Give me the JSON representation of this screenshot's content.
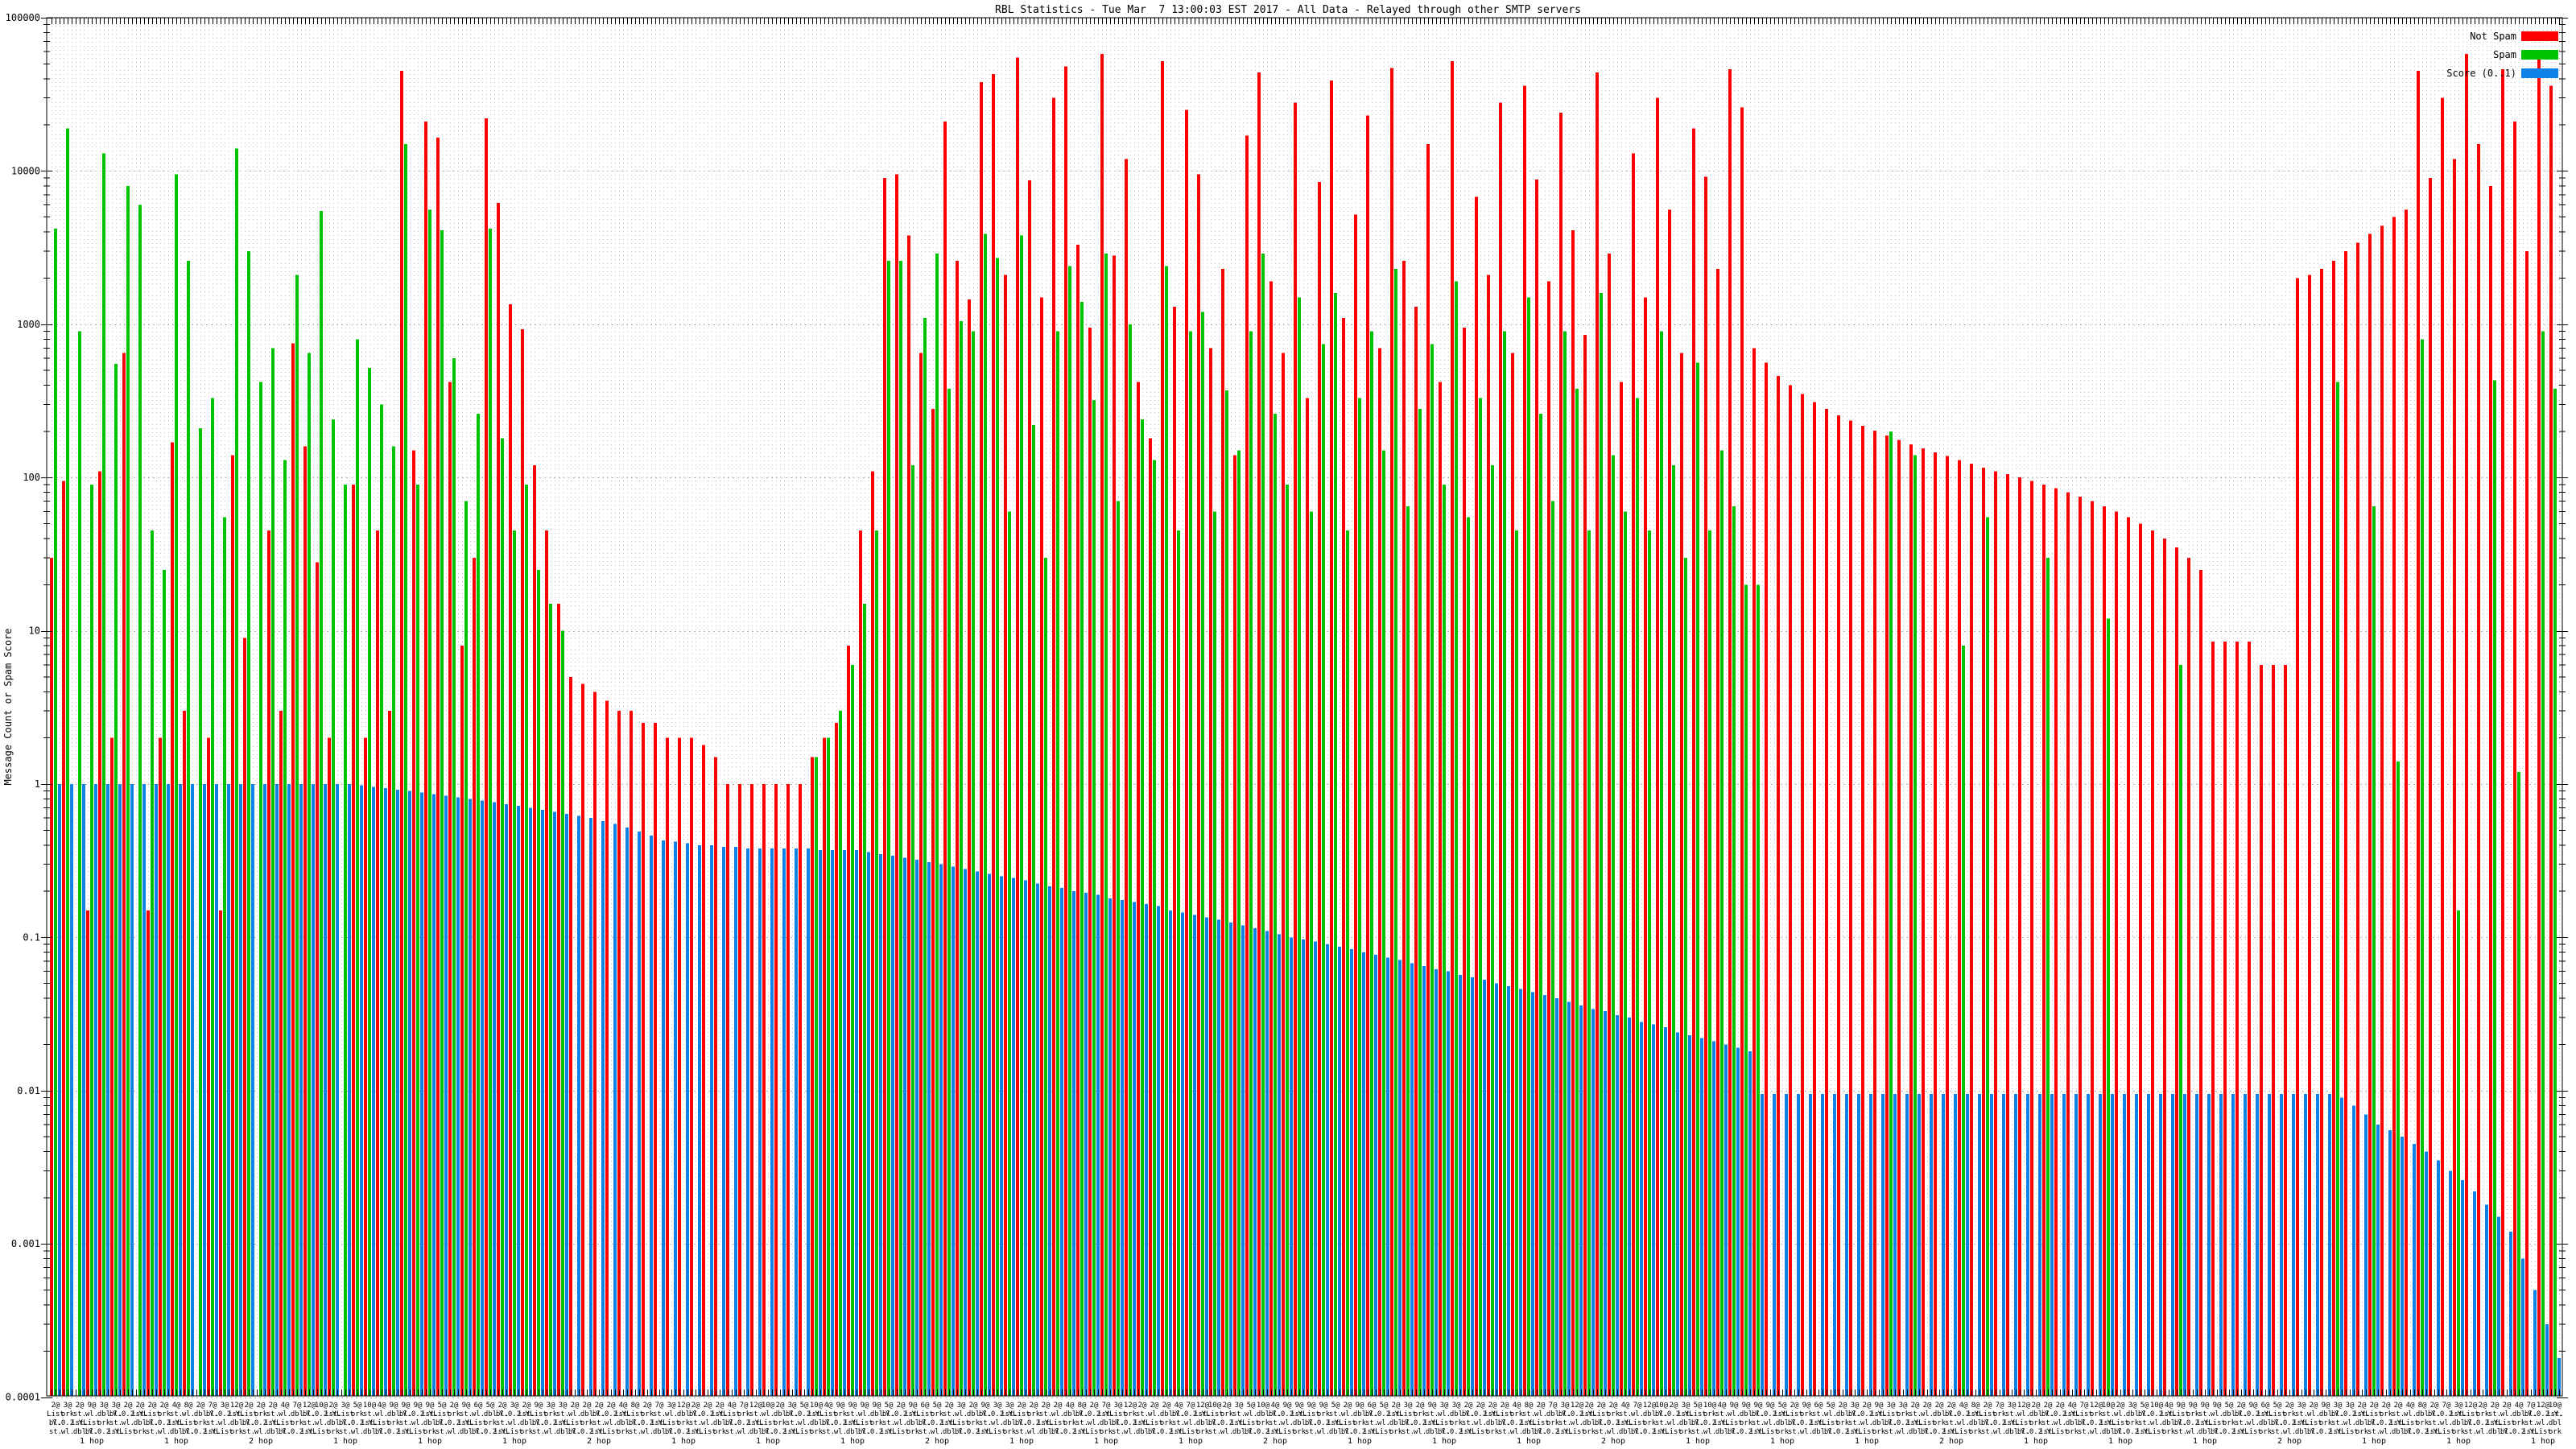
{
  "page": {
    "title": "RBL Statistics - Tue Mar  7 13:00:03 EST 2017 - All Data - Relayed through other SMTP servers"
  },
  "chart_data": {
    "type": "bar",
    "title": "RBL Statistics - Tue Mar  7 13:00:03 EST 2017 - All Data - Relayed through other SMTP servers",
    "xlabel": "",
    "ylabel": "Message Count or Spam Score",
    "yscale": "log",
    "ylim": [
      0.0001,
      100000
    ],
    "yticks": [
      100000,
      10000,
      1000,
      100,
      10,
      1,
      0.1,
      0.01,
      0.001,
      0.0001
    ],
    "grid": {
      "vertical_dotted_per_slot": true,
      "horizontal_dotted_per_decade": true
    },
    "legend": {
      "position": "top-right",
      "entries": [
        {
          "label": "Not Spam",
          "color": "#ff0000"
        },
        {
          "label": "Spam",
          "color": "#00c300"
        },
        {
          "label": "Score (0..1)",
          "color": "#0e82e6"
        }
      ]
    },
    "x_axis": {
      "categories_count": 208,
      "labels_illegible_overlap": true,
      "count_prefix_cycle": [
        2,
        3,
        2,
        9,
        3,
        3,
        2,
        2,
        2,
        2,
        4,
        8,
        2,
        7,
        3,
        12,
        2,
        2,
        2,
        4,
        7,
        12,
        10,
        2,
        3,
        5,
        10,
        4,
        9,
        9,
        9,
        9,
        5,
        2,
        9,
        6,
        5
      ],
      "label_fragments": [
        "List",
        "ist.",
        ".Y.0.2.Y.",
        "bl.",
        "dbl",
        "wl.",
        "st.",
        "ork"
      ],
      "hop_label_cycle": [
        "1 hop",
        "1 hop",
        "2 hop",
        "1 hop"
      ],
      "hop_label_every": 7
    },
    "series": [
      {
        "name": "Not Spam",
        "color": "#ff0000",
        "values": [
          30,
          95,
          0,
          0.15,
          110,
          2,
          650,
          0,
          0.15,
          2,
          170,
          3,
          0,
          2,
          0.15,
          140,
          9,
          0,
          45,
          3,
          750,
          160,
          28,
          2,
          0,
          90,
          2,
          45,
          3,
          45000,
          150,
          21000,
          16500,
          420,
          8,
          30,
          22000,
          6200,
          1350,
          930,
          120,
          45,
          15,
          5,
          4.5,
          4,
          3.5,
          3,
          3,
          2.5,
          2.5,
          2,
          2,
          2,
          1.8,
          1.5,
          1,
          1,
          1,
          1,
          1,
          1,
          1,
          1.5,
          2,
          2.5,
          8,
          45,
          110,
          9000,
          9500,
          3800,
          650,
          280,
          21000,
          2600,
          1450,
          38000,
          43000,
          2100,
          55000,
          8700,
          1500,
          30000,
          48000,
          3300,
          950,
          58000,
          2800,
          12000,
          420,
          180,
          52000,
          1300,
          25000,
          9500,
          700,
          2300,
          140,
          17000,
          44000,
          1900,
          650,
          28000,
          330,
          8500,
          39000,
          1100,
          5200,
          23000,
          700,
          47000,
          2600,
          1300,
          15000,
          420,
          52000,
          950,
          6800,
          2100,
          28000,
          650,
          36000,
          8800,
          1900,
          24000,
          4100,
          850,
          44000,
          2900,
          420,
          13000,
          1500,
          30000,
          5600,
          650,
          19000,
          9200,
          2300,
          46000,
          26000,
          700,
          560,
          460,
          400,
          350,
          310,
          280,
          255,
          235,
          218,
          202,
          188,
          176,
          165,
          155,
          146,
          138,
          130,
          123,
          116,
          110,
          105,
          100,
          95,
          90,
          85,
          80,
          75,
          70,
          65,
          60,
          55,
          50,
          45,
          40,
          35,
          30,
          25,
          8.5,
          8.5,
          8.5,
          8.5,
          6,
          6,
          6,
          2000,
          2100,
          2300,
          2600,
          3000,
          3400,
          3900,
          4400,
          5000,
          5600,
          45000,
          9000,
          30000,
          12000,
          58000,
          15000,
          8000,
          46000,
          21000,
          3000,
          60000,
          36000
        ]
      },
      {
        "name": "Spam",
        "color": "#00c300",
        "values": [
          4200,
          19000,
          900,
          90,
          13000,
          550,
          8000,
          6000,
          45,
          25,
          9500,
          2600,
          210,
          330,
          55,
          14000,
          3000,
          420,
          700,
          130,
          2100,
          650,
          5500,
          240,
          90,
          800,
          520,
          300,
          160,
          15000,
          90,
          5600,
          4100,
          600,
          70,
          260,
          4200,
          180,
          45,
          90,
          25,
          15,
          10,
          0,
          0,
          0,
          0,
          0,
          0,
          0,
          0,
          0,
          0,
          0,
          0,
          0,
          0,
          0,
          0,
          0,
          0,
          0,
          0,
          1.5,
          2,
          3,
          6,
          15,
          45,
          2600,
          2600,
          120,
          1100,
          2900,
          380,
          1050,
          900,
          3900,
          2700,
          60,
          3800,
          220,
          30,
          900,
          2400,
          1400,
          320,
          2900,
          70,
          1000,
          240,
          130,
          2400,
          45,
          900,
          1200,
          60,
          370,
          150,
          900,
          2900,
          260,
          90,
          1500,
          60,
          740,
          1600,
          45,
          330,
          900,
          150,
          2300,
          65,
          280,
          740,
          90,
          1900,
          55,
          330,
          120,
          900,
          45,
          1500,
          260,
          70,
          900,
          380,
          45,
          1600,
          140,
          60,
          330,
          45,
          900,
          120,
          30,
          560,
          45,
          150,
          65,
          20,
          20,
          0,
          0,
          0,
          0,
          0,
          0,
          0,
          0,
          0,
          0,
          200,
          0,
          140,
          0,
          0,
          0,
          8,
          0,
          55,
          0,
          0,
          0,
          0,
          30,
          0,
          0,
          0,
          0,
          12,
          0,
          0,
          0,
          0,
          0,
          6,
          0,
          0,
          0,
          0,
          0,
          0,
          0,
          0,
          0,
          0,
          0,
          0,
          420,
          0,
          0,
          65,
          0,
          1.4,
          0,
          800,
          0,
          0,
          0.15,
          0,
          0,
          430,
          0,
          1.2,
          0,
          900,
          380
        ]
      },
      {
        "name": "Score (0..1)",
        "color": "#0e82e6",
        "values": [
          0.999,
          0.999,
          0.999,
          0.999,
          0.999,
          0.999,
          0.999,
          0.999,
          0.999,
          0.999,
          0.999,
          0.999,
          0.999,
          0.999,
          0.999,
          0.999,
          0.999,
          0.999,
          0.999,
          0.999,
          0.999,
          0.999,
          0.999,
          0.999,
          0.999,
          0.98,
          0.96,
          0.94,
          0.92,
          0.9,
          0.88,
          0.86,
          0.84,
          0.82,
          0.8,
          0.78,
          0.76,
          0.74,
          0.72,
          0.7,
          0.68,
          0.66,
          0.64,
          0.62,
          0.6,
          0.575,
          0.55,
          0.52,
          0.49,
          0.46,
          0.43,
          0.42,
          0.41,
          0.4,
          0.4,
          0.39,
          0.39,
          0.38,
          0.38,
          0.38,
          0.38,
          0.38,
          0.38,
          0.37,
          0.37,
          0.37,
          0.37,
          0.36,
          0.35,
          0.34,
          0.33,
          0.32,
          0.31,
          0.3,
          0.29,
          0.28,
          0.27,
          0.26,
          0.25,
          0.245,
          0.235,
          0.225,
          0.215,
          0.21,
          0.2,
          0.195,
          0.19,
          0.18,
          0.175,
          0.17,
          0.165,
          0.16,
          0.15,
          0.145,
          0.14,
          0.135,
          0.13,
          0.125,
          0.12,
          0.115,
          0.11,
          0.105,
          0.1,
          0.097,
          0.094,
          0.09,
          0.087,
          0.084,
          0.08,
          0.077,
          0.074,
          0.071,
          0.068,
          0.065,
          0.062,
          0.06,
          0.057,
          0.055,
          0.053,
          0.05,
          0.048,
          0.046,
          0.044,
          0.042,
          0.04,
          0.038,
          0.036,
          0.034,
          0.033,
          0.031,
          0.03,
          0.028,
          0.027,
          0.026,
          0.024,
          0.023,
          0.022,
          0.021,
          0.02,
          0.019,
          0.018,
          0.0095,
          0.0095,
          0.0095,
          0.0095,
          0.0095,
          0.0095,
          0.0095,
          0.0095,
          0.0095,
          0.0095,
          0.0095,
          0.0095,
          0.0095,
          0.0095,
          0.0095,
          0.0095,
          0.0095,
          0.0095,
          0.0095,
          0.0095,
          0.0095,
          0.0095,
          0.0095,
          0.0095,
          0.0095,
          0.0095,
          0.0095,
          0.0095,
          0.0095,
          0.0095,
          0.0095,
          0.0095,
          0.0095,
          0.0095,
          0.0095,
          0.0095,
          0.0095,
          0.0095,
          0.0095,
          0.0095,
          0.0095,
          0.0095,
          0.0095,
          0.0095,
          0.0095,
          0.0095,
          0.0095,
          0.0095,
          0.009,
          0.008,
          0.007,
          0.006,
          0.0055,
          0.005,
          0.0045,
          0.004,
          0.0035,
          0.003,
          0.0026,
          0.0022,
          0.0018,
          0.0015,
          0.0012,
          0.0008,
          0.0005,
          0.0003,
          0.00018
        ]
      }
    ]
  },
  "colors": {
    "background": "#ffffff",
    "axis": "#000000",
    "grid_vertical": "#c3c3c3",
    "grid_horizontal": "#b4b4b4"
  }
}
